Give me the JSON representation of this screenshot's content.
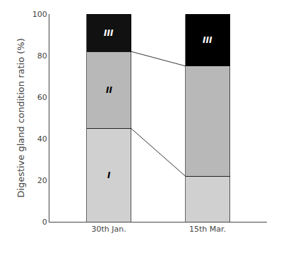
{
  "chart_data": {
    "type": "bar",
    "stacked": true,
    "categories": [
      "30th Jan.",
      "15th Mar."
    ],
    "series": [
      {
        "name": "I",
        "color": "#d0d0d0",
        "values": [
          45,
          22
        ]
      },
      {
        "name": "II",
        "color": "#b8b8b8",
        "values": [
          37,
          53
        ]
      },
      {
        "name": "III",
        "colors": [
          "#111111",
          "#000000"
        ],
        "values": [
          18,
          25
        ]
      }
    ],
    "ylabel": "Digestive gland condition ratio (%)",
    "ylim": [
      0,
      100
    ],
    "yticks": [
      0,
      20,
      40,
      60,
      80,
      100
    ],
    "grid": false,
    "legend": false,
    "annotations": [
      {
        "text": "I",
        "category": "30th Jan."
      },
      {
        "text": "II",
        "category": "30th Jan."
      },
      {
        "text": "III",
        "category": "30th Jan."
      },
      {
        "text": "III",
        "category": "15th Mar."
      }
    ]
  }
}
